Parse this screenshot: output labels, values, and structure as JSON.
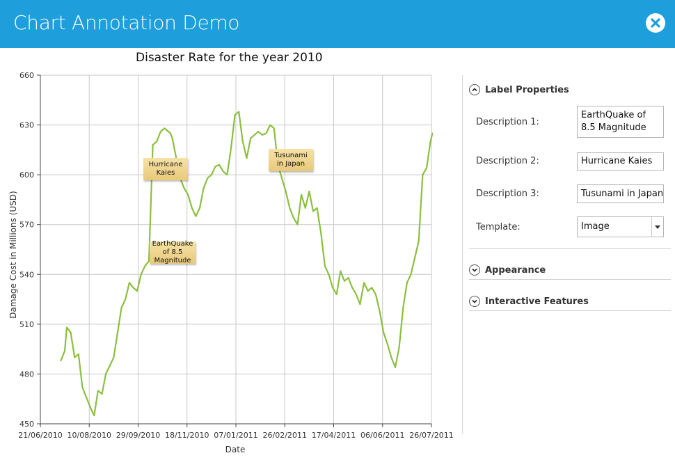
{
  "window": {
    "title": "Chart Annotation Demo",
    "close_icon": "close-icon"
  },
  "chart_data": {
    "type": "line",
    "title": "Disaster Rate for the year 2010",
    "xlabel": "Date",
    "ylabel": "Damage Cost in Millions (USD)",
    "ylim": [
      450,
      660
    ],
    "yticks": [
      "450",
      "480",
      "510",
      "540",
      "570",
      "600",
      "630",
      "660"
    ],
    "xticks": [
      "21/06/2010",
      "10/08/2010",
      "29/09/2010",
      "18/11/2010",
      "07/01/2011",
      "26/02/2011",
      "17/04/2011",
      "06/06/2011",
      "26/07/2011"
    ],
    "xlim": [
      "2010-06-21",
      "2011-07-26"
    ],
    "grid": true,
    "line_color": "#8bbf3e",
    "x": [
      "2010-07-12",
      "2010-07-16",
      "2010-07-18",
      "2010-07-22",
      "2010-07-26",
      "2010-07-30",
      "2010-08-03",
      "2010-08-07",
      "2010-08-11",
      "2010-08-15",
      "2010-08-19",
      "2010-08-23",
      "2010-08-27",
      "2010-08-31",
      "2010-09-04",
      "2010-09-08",
      "2010-09-12",
      "2010-09-16",
      "2010-09-20",
      "2010-09-24",
      "2010-09-28",
      "2010-10-02",
      "2010-10-06",
      "2010-10-10",
      "2010-10-14",
      "2010-10-18",
      "2010-10-22",
      "2010-10-26",
      "2010-10-30",
      "2010-11-01",
      "2010-11-03",
      "2010-11-07",
      "2010-11-11",
      "2010-11-15",
      "2010-11-19",
      "2010-11-23",
      "2010-11-27",
      "2010-12-01",
      "2010-12-05",
      "2010-12-09",
      "2010-12-13",
      "2010-12-17",
      "2010-12-21",
      "2010-12-25",
      "2010-12-29",
      "2011-01-02",
      "2011-01-06",
      "2011-01-10",
      "2011-01-14",
      "2011-01-18",
      "2011-01-22",
      "2011-01-26",
      "2011-01-30",
      "2011-02-03",
      "2011-02-07",
      "2011-02-11",
      "2011-02-15",
      "2011-02-19",
      "2011-02-23",
      "2011-02-27",
      "2011-03-03",
      "2011-03-07",
      "2011-03-11",
      "2011-03-15",
      "2011-03-19",
      "2011-03-23",
      "2011-03-27",
      "2011-03-31",
      "2011-04-04",
      "2011-04-08",
      "2011-04-12",
      "2011-04-16",
      "2011-04-20",
      "2011-04-24",
      "2011-04-28",
      "2011-05-02",
      "2011-05-06",
      "2011-05-10",
      "2011-05-14",
      "2011-05-18",
      "2011-05-22",
      "2011-05-26",
      "2011-05-30",
      "2011-06-03",
      "2011-06-07",
      "2011-06-11",
      "2011-06-15",
      "2011-06-19",
      "2011-06-23",
      "2011-06-27",
      "2011-07-01",
      "2011-07-05",
      "2011-07-09",
      "2011-07-13",
      "2011-07-17",
      "2011-07-21",
      "2011-07-25",
      "2011-07-27"
    ],
    "values": [
      488,
      494,
      508,
      505,
      490,
      492,
      472,
      466,
      460,
      455,
      470,
      468,
      480,
      485,
      490,
      505,
      520,
      525,
      535,
      532,
      530,
      540,
      545,
      548,
      618,
      620,
      626,
      628,
      626,
      625,
      622,
      610,
      598,
      592,
      588,
      580,
      575,
      580,
      592,
      598,
      600,
      605,
      606,
      602,
      600,
      616,
      636,
      638,
      620,
      610,
      622,
      624,
      626,
      624,
      625,
      630,
      628,
      606,
      598,
      590,
      580,
      574,
      570,
      588,
      580,
      590,
      578,
      580,
      565,
      545,
      540,
      532,
      528,
      542,
      536,
      538,
      532,
      528,
      522,
      535,
      530,
      532,
      528,
      518,
      505,
      498,
      490,
      484,
      496,
      520,
      535,
      540,
      550,
      560,
      600,
      604,
      620,
      625
    ]
  },
  "annotations": [
    {
      "text": "Hurricane Kaies"
    },
    {
      "text": "EarthQuake of 8.5 Magnitude"
    },
    {
      "text": "Tusunami in Japan"
    }
  ],
  "panel": {
    "label_properties": {
      "header": "Label Properties",
      "description1_label": "Description 1:",
      "description1_value": "EarthQuake of 8.5 Magnitude",
      "description2_label": "Description 2:",
      "description2_value": "Hurricane Kaies",
      "description3_label": "Description 3:",
      "description3_value": "Tusunami in Japan",
      "template_label": "Template:",
      "template_value": "Image"
    },
    "appearance_header": "Appearance",
    "interactive_header": "Interactive Features"
  }
}
